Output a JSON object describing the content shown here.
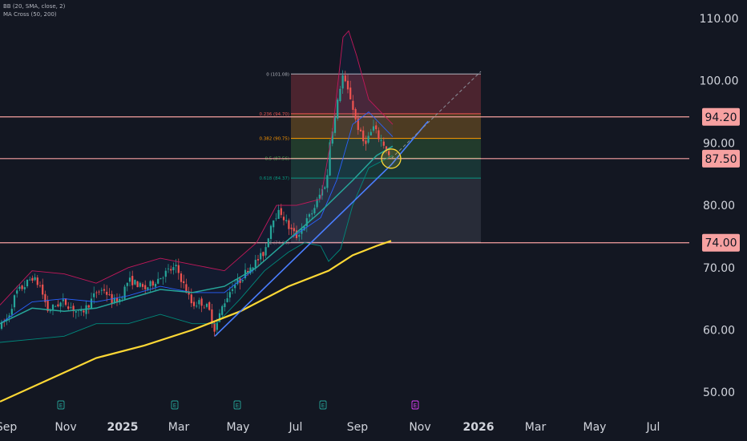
{
  "indicators": {
    "bb_label": "BB (20, SMA, close, 2)",
    "ma_label": "MA Cross (50, 200)"
  },
  "colors": {
    "background": "#131722",
    "axis_text": "#d1d4dc",
    "candle_up": "#26a69a",
    "candle_down": "#ef5350",
    "bb_basis": "#2962ff",
    "bb_upper": "#c2185b",
    "bb_lower": "#00897b",
    "ma_50": "#26a69a",
    "ma_200": "#fdd835",
    "horizontal_level": "#f7a1a1",
    "trendline": "#4a7eff"
  },
  "chart_data": {
    "type": "candlestick",
    "x_axis": {
      "ticks": [
        "Sep",
        "Nov",
        "2025",
        "Mar",
        "May",
        "Jul",
        "Sep",
        "Nov",
        "2026",
        "Mar",
        "May",
        "Jul"
      ],
      "bold_ticks": [
        "2025",
        "2026"
      ]
    },
    "y_axis": {
      "ticks": [
        "110.00",
        "100.00",
        "90.00",
        "80.00",
        "70.00",
        "60.00",
        "50.00"
      ],
      "range": [
        47,
        115
      ],
      "scale": "linear"
    },
    "horizontal_levels": [
      {
        "label": "94.20",
        "value": 94.2
      },
      {
        "label": "87.50",
        "value": 87.5
      },
      {
        "label": "74.00",
        "value": 74.0
      }
    ],
    "fibonacci": {
      "levels": [
        {
          "label": "0 (101.08)",
          "value": 101.08,
          "color": "#b2b5be"
        },
        {
          "label": "0.236 (94.70)",
          "value": 94.7,
          "color": "#ef5350"
        },
        {
          "label": "0.382 (90.75)",
          "value": 90.75,
          "color": "#ff9800"
        },
        {
          "label": "0.5 (87.56)",
          "value": 87.56,
          "color": "#4caf50"
        },
        {
          "label": "0.618 (84.37)",
          "value": 84.37,
          "color": "#089981"
        },
        {
          "label": "1 (74.06)",
          "value": 74.06,
          "color": "#787b86"
        }
      ],
      "zone_colors": [
        "#7a2f3a",
        "#7d5a22",
        "#2f5a35",
        "#1f4f46",
        "#3a3e4a"
      ]
    },
    "earnings_markers": [
      {
        "label": "E",
        "position": "Nov 2024",
        "color": "#26a69a"
      },
      {
        "label": "E",
        "position": "Feb 2025",
        "color": "#26a69a"
      },
      {
        "label": "E",
        "position": "May 2025",
        "color": "#26a69a"
      },
      {
        "label": "E",
        "position": "Aug 2025",
        "color": "#26a69a"
      },
      {
        "label": "E",
        "position": "Nov 2025",
        "color": "#e040fb"
      }
    ],
    "price_path": [
      [
        0,
        60.5
      ],
      [
        10,
        62
      ],
      [
        20,
        66
      ],
      [
        30,
        67
      ],
      [
        40,
        68.5
      ],
      [
        50,
        67
      ],
      [
        60,
        63
      ],
      [
        70,
        64
      ],
      [
        80,
        64.5
      ],
      [
        90,
        63.5
      ],
      [
        100,
        62.5
      ],
      [
        110,
        64
      ],
      [
        120,
        66
      ],
      [
        130,
        66.5
      ],
      [
        140,
        64.5
      ],
      [
        150,
        65
      ],
      [
        160,
        68
      ],
      [
        170,
        67.5
      ],
      [
        180,
        66.5
      ],
      [
        190,
        67.5
      ],
      [
        200,
        68.5
      ],
      [
        210,
        69.5
      ],
      [
        220,
        70
      ],
      [
        230,
        67
      ],
      [
        240,
        64
      ],
      [
        250,
        64.5
      ],
      [
        260,
        63.5
      ],
      [
        268,
        60
      ],
      [
        278,
        64
      ],
      [
        290,
        67
      ],
      [
        300,
        68
      ],
      [
        310,
        70
      ],
      [
        320,
        71
      ],
      [
        330,
        72.5
      ],
      [
        340,
        78
      ],
      [
        350,
        79
      ],
      [
        360,
        76.5
      ],
      [
        370,
        75
      ],
      [
        380,
        77
      ],
      [
        390,
        79
      ],
      [
        400,
        82
      ],
      [
        408,
        84
      ],
      [
        412,
        91
      ],
      [
        418,
        94
      ],
      [
        423,
        98
      ],
      [
        427,
        101
      ],
      [
        432,
        99
      ],
      [
        438,
        97
      ],
      [
        443,
        94
      ],
      [
        448,
        92
      ],
      [
        454,
        90
      ],
      [
        460,
        91
      ],
      [
        466,
        92.5
      ],
      [
        472,
        91
      ],
      [
        478,
        90
      ],
      [
        484,
        88.5
      ],
      [
        488,
        86.5
      ]
    ],
    "ma_50_path": [
      [
        0,
        61
      ],
      [
        40,
        63.5
      ],
      [
        80,
        63
      ],
      [
        120,
        63.5
      ],
      [
        160,
        65
      ],
      [
        200,
        66.5
      ],
      [
        240,
        66
      ],
      [
        280,
        67
      ],
      [
        320,
        70
      ],
      [
        360,
        74.5
      ],
      [
        400,
        79
      ],
      [
        440,
        84
      ],
      [
        470,
        88
      ],
      [
        490,
        89.5
      ]
    ],
    "ma_200_path": [
      [
        0,
        48.5
      ],
      [
        60,
        52
      ],
      [
        120,
        55.5
      ],
      [
        180,
        57.5
      ],
      [
        240,
        60
      ],
      [
        300,
        63
      ],
      [
        360,
        67
      ],
      [
        410,
        69.5
      ],
      [
        440,
        72
      ],
      [
        470,
        73.5
      ],
      [
        488,
        74.3
      ]
    ],
    "bb_basis_path": [
      [
        0,
        61
      ],
      [
        40,
        64.5
      ],
      [
        80,
        65
      ],
      [
        120,
        64.5
      ],
      [
        160,
        65.5
      ],
      [
        200,
        67
      ],
      [
        240,
        66
      ],
      [
        280,
        66
      ],
      [
        320,
        70
      ],
      [
        360,
        74.5
      ],
      [
        400,
        78
      ],
      [
        420,
        84
      ],
      [
        440,
        93
      ],
      [
        460,
        95
      ],
      [
        490,
        91
      ]
    ],
    "bb_upper_path": [
      [
        0,
        64
      ],
      [
        40,
        69.5
      ],
      [
        80,
        69
      ],
      [
        120,
        67.5
      ],
      [
        160,
        70
      ],
      [
        200,
        71.5
      ],
      [
        240,
        70.5
      ],
      [
        280,
        69.5
      ],
      [
        320,
        74
      ],
      [
        345,
        80
      ],
      [
        370,
        80
      ],
      [
        400,
        81
      ],
      [
        415,
        92
      ],
      [
        428,
        107
      ],
      [
        435,
        108
      ],
      [
        445,
        104
      ],
      [
        460,
        97
      ],
      [
        490,
        93
      ]
    ],
    "bb_lower_path": [
      [
        0,
        58
      ],
      [
        40,
        58.5
      ],
      [
        80,
        59
      ],
      [
        120,
        61
      ],
      [
        160,
        61
      ],
      [
        200,
        62.5
      ],
      [
        240,
        61
      ],
      [
        270,
        61
      ],
      [
        300,
        65
      ],
      [
        330,
        69.5
      ],
      [
        360,
        72.5
      ],
      [
        380,
        74
      ],
      [
        400,
        73.5
      ],
      [
        410,
        71
      ],
      [
        425,
        73
      ],
      [
        440,
        80
      ],
      [
        460,
        86
      ],
      [
        490,
        88
      ]
    ],
    "trendlines": [
      {
        "from": [
          268,
          59
        ],
        "to": [
          488,
          86.5
        ],
        "style": "solid"
      },
      {
        "from": [
          488,
          86.5
        ],
        "to": [
          534,
          93.5
        ],
        "style": "solid"
      },
      {
        "from": [
          488,
          87.5
        ],
        "to": [
          600,
          101.5
        ],
        "style": "dashed"
      }
    ],
    "highlight_circle": {
      "x": 488,
      "y": 87.5
    }
  }
}
